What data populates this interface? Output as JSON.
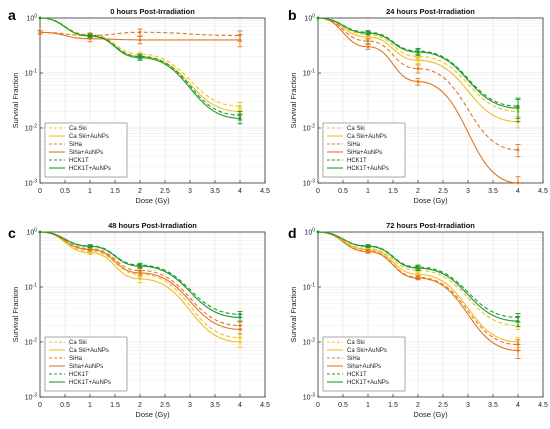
{
  "chart_data": [
    {
      "panel_letter": "a",
      "type": "line",
      "title": "0 hours Post-Irradiation",
      "xlabel": "Dose (Gy)",
      "ylabel": "Survival Fraction",
      "xlim": [
        0,
        4.5
      ],
      "ylim": [
        0.001,
        1
      ],
      "yscale": "log",
      "x_ticks": [
        "0",
        "0.5",
        "1",
        "1.5",
        "2",
        "2.5",
        "3",
        "3.5",
        "4",
        "4.5"
      ],
      "y_ticks": [
        "10^{-3}",
        "10^{-2}",
        "10^{-1}",
        "10^{0}"
      ],
      "grid": true,
      "legend": "bottom-left",
      "x": [
        0,
        1,
        2,
        4
      ],
      "series": [
        {
          "name": "Ca Ski",
          "color": "#f0c020",
          "dash": true,
          "values": [
            1,
            0.5,
            0.22,
            0.025
          ],
          "errors": [
            0,
            0.04,
            0.02,
            0.004
          ]
        },
        {
          "name": "Ca Ski+AuNPs",
          "color": "#f0c020",
          "dash": false,
          "values": [
            1,
            0.48,
            0.2,
            0.02
          ],
          "errors": [
            0,
            0.04,
            0.02,
            0.003
          ]
        },
        {
          "name": "SiHa",
          "color": "#e07820",
          "dash": true,
          "values": [
            0.55,
            0.48,
            0.55,
            0.48
          ],
          "errors": [
            0.04,
            0.05,
            0.08,
            0.1
          ]
        },
        {
          "name": "Siha+AuNPs",
          "color": "#e07820",
          "dash": false,
          "values": [
            0.55,
            0.42,
            0.4,
            0.4
          ],
          "errors": [
            0.04,
            0.05,
            0.06,
            0.1
          ]
        },
        {
          "name": "HCK1T",
          "color": "#1e9a2a",
          "dash": true,
          "values": [
            1,
            0.48,
            0.2,
            0.017
          ],
          "errors": [
            0,
            0.03,
            0.02,
            0.003
          ]
        },
        {
          "name": "HCK1T+AuNPs",
          "color": "#1e9a2a",
          "dash": false,
          "values": [
            1,
            0.47,
            0.19,
            0.015
          ],
          "errors": [
            0,
            0.03,
            0.02,
            0.003
          ]
        }
      ]
    },
    {
      "panel_letter": "b",
      "type": "line",
      "title": "24 hours Post-Irradiation",
      "xlabel": "Dose (Gy)",
      "ylabel": "Survival Fraction",
      "xlim": [
        0,
        4.5
      ],
      "ylim": [
        0.001,
        1
      ],
      "yscale": "log",
      "x_ticks": [
        "0",
        "0.5",
        "1",
        "1.5",
        "2",
        "2.5",
        "3",
        "3.5",
        "4",
        "4.5"
      ],
      "y_ticks": [
        "10^{-3}",
        "10^{-2}",
        "10^{-1}",
        "10^{0}"
      ],
      "grid": true,
      "legend": "bottom-left",
      "x": [
        0,
        1,
        2,
        4
      ],
      "series": [
        {
          "name": "Ca Ski",
          "color": "#f0c020",
          "dash": true,
          "values": [
            1,
            0.5,
            0.2,
            0.02
          ],
          "errors": [
            0,
            0.04,
            0.02,
            0.004
          ]
        },
        {
          "name": "Ca Ski+AuNPs",
          "color": "#f0c020",
          "dash": false,
          "values": [
            1,
            0.45,
            0.17,
            0.013
          ],
          "errors": [
            0,
            0.04,
            0.02,
            0.003
          ]
        },
        {
          "name": "SiHa",
          "color": "#e07820",
          "dash": true,
          "values": [
            1,
            0.38,
            0.12,
            0.004
          ],
          "errors": [
            0,
            0.04,
            0.02,
            0.001
          ]
        },
        {
          "name": "SiHa+AuNPs",
          "color": "#e07820",
          "dash": false,
          "values": [
            1,
            0.3,
            0.07,
            0.001
          ],
          "errors": [
            0,
            0.03,
            0.01,
            0.0003
          ]
        },
        {
          "name": "HCK1T",
          "color": "#1e9a2a",
          "dash": true,
          "values": [
            1,
            0.55,
            0.25,
            0.025
          ],
          "errors": [
            0,
            0.04,
            0.03,
            0.01
          ]
        },
        {
          "name": "HCK1T+AuNPs",
          "color": "#1e9a2a",
          "dash": false,
          "values": [
            1,
            0.53,
            0.24,
            0.023
          ],
          "errors": [
            0,
            0.04,
            0.03,
            0.01
          ]
        }
      ]
    },
    {
      "panel_letter": "c",
      "type": "line",
      "title": "48 hours Post-Irradiation",
      "xlabel": "Dose (Gy)",
      "ylabel": "Survival Fraction",
      "xlim": [
        0,
        4.5
      ],
      "ylim": [
        0.001,
        1
      ],
      "yscale": "log",
      "x_ticks": [
        "0",
        "0.5",
        "1",
        "1.5",
        "2",
        "2.5",
        "3",
        "3.5",
        "4",
        "4.5"
      ],
      "y_ticks": [
        "10^{-3}",
        "10^{-2}",
        "10^{-1}",
        "10^{0}"
      ],
      "grid": true,
      "legend": "bottom-left",
      "x": [
        0,
        1,
        2,
        4
      ],
      "series": [
        {
          "name": "Ca Ski",
          "color": "#f0c020",
          "dash": true,
          "values": [
            1,
            0.45,
            0.17,
            0.012
          ],
          "errors": [
            0,
            0.03,
            0.02,
            0.002
          ]
        },
        {
          "name": "Ca Ski+AuNPs",
          "color": "#f0c020",
          "dash": false,
          "values": [
            1,
            0.42,
            0.14,
            0.01
          ],
          "errors": [
            0,
            0.03,
            0.02,
            0.002
          ]
        },
        {
          "name": "SiHa",
          "color": "#e07820",
          "dash": true,
          "values": [
            1,
            0.5,
            0.2,
            0.02
          ],
          "errors": [
            0,
            0.03,
            0.02,
            0.003
          ]
        },
        {
          "name": "Siha+AuNPs",
          "color": "#e07820",
          "dash": false,
          "values": [
            1,
            0.48,
            0.18,
            0.017
          ],
          "errors": [
            0,
            0.03,
            0.02,
            0.003
          ]
        },
        {
          "name": "HCK1T",
          "color": "#1e9a2a",
          "dash": true,
          "values": [
            1,
            0.56,
            0.25,
            0.032
          ],
          "errors": [
            0,
            0.03,
            0.02,
            0.004
          ]
        },
        {
          "name": "HCK1T+AuNPs",
          "color": "#1e9a2a",
          "dash": false,
          "values": [
            1,
            0.55,
            0.24,
            0.028
          ],
          "errors": [
            0,
            0.03,
            0.02,
            0.004
          ]
        }
      ]
    },
    {
      "panel_letter": "d",
      "type": "line",
      "title": "72 hours Post-Irradiation",
      "xlabel": "Dose (Gy)",
      "ylabel": "Survival Fraction",
      "xlim": [
        0,
        4.5
      ],
      "ylim": [
        0.001,
        1
      ],
      "yscale": "log",
      "x_ticks": [
        "0",
        "0.5",
        "1",
        "1.5",
        "2",
        "2.5",
        "3",
        "3.5",
        "4",
        "4.5"
      ],
      "y_ticks": [
        "10^{-3}",
        "10^{-2}",
        "10^{-1}",
        "10^{0}"
      ],
      "grid": true,
      "legend": "bottom-left",
      "x": [
        0,
        1,
        2,
        4
      ],
      "series": [
        {
          "name": "Ca Ski",
          "color": "#f0c020",
          "dash": true,
          "values": [
            1,
            0.5,
            0.2,
            0.02
          ],
          "errors": [
            0,
            0.03,
            0.02,
            0.003
          ]
        },
        {
          "name": "Ca Ski+AuNPs",
          "color": "#f0c020",
          "dash": false,
          "values": [
            1,
            0.48,
            0.17,
            0.01
          ],
          "errors": [
            0,
            0.03,
            0.02,
            0.002
          ]
        },
        {
          "name": "SiHa",
          "color": "#e07820",
          "dash": true,
          "values": [
            1,
            0.45,
            0.15,
            0.009
          ],
          "errors": [
            0,
            0.03,
            0.01,
            0.002
          ]
        },
        {
          "name": "Siha+AuNPs",
          "color": "#e07820",
          "dash": false,
          "values": [
            1,
            0.44,
            0.145,
            0.007
          ],
          "errors": [
            0,
            0.03,
            0.01,
            0.002
          ]
        },
        {
          "name": "HCK1T",
          "color": "#1e9a2a",
          "dash": true,
          "values": [
            1,
            0.56,
            0.23,
            0.028
          ],
          "errors": [
            0,
            0.03,
            0.02,
            0.005
          ]
        },
        {
          "name": "HCK1T+AuNPs",
          "color": "#1e9a2a",
          "dash": false,
          "values": [
            1,
            0.55,
            0.22,
            0.024
          ],
          "errors": [
            0,
            0.03,
            0.02,
            0.005
          ]
        }
      ]
    }
  ]
}
